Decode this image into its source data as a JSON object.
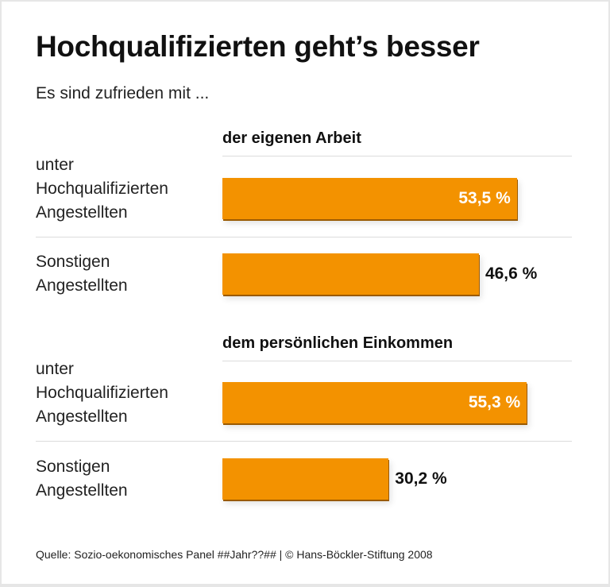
{
  "title": "Hochqualifizierten geht’s besser",
  "subtitle": "Es sind zufrieden mit ...",
  "footer": "Quelle: Sozio-oekonomisches Panel ##Jahr??## | © Hans-Böckler-Stiftung 2008",
  "colors": {
    "bar": "#f39200",
    "background": "#ffffff",
    "frame": "#e6e6e6"
  },
  "chart_data": {
    "type": "bar",
    "orientation": "horizontal",
    "title": "Hochqualifizierten geht’s besser",
    "subtitle": "Es sind zufrieden mit ...",
    "unit": "%",
    "groups": [
      {
        "name": "der eigenen Arbeit",
        "rows": [
          {
            "label_lines": [
              "unter",
              "Hochqualifizierten",
              "Angestellten"
            ],
            "value": 53.5,
            "value_label": "53,5 %",
            "label_inside": true
          },
          {
            "label_lines": [
              "Sonstigen",
              "Angestellten"
            ],
            "value": 46.6,
            "value_label": "46,6 %",
            "label_inside": false
          }
        ]
      },
      {
        "name": "dem persönlichen Einkommen",
        "rows": [
          {
            "label_lines": [
              "unter",
              "Hochqualifizierten",
              "Angestellten"
            ],
            "value": 55.3,
            "value_label": "55,3 %",
            "label_inside": true
          },
          {
            "label_lines": [
              "Sonstigen",
              "Angestellten"
            ],
            "value": 30.2,
            "value_label": "30,2 %",
            "label_inside": false
          }
        ]
      }
    ]
  }
}
